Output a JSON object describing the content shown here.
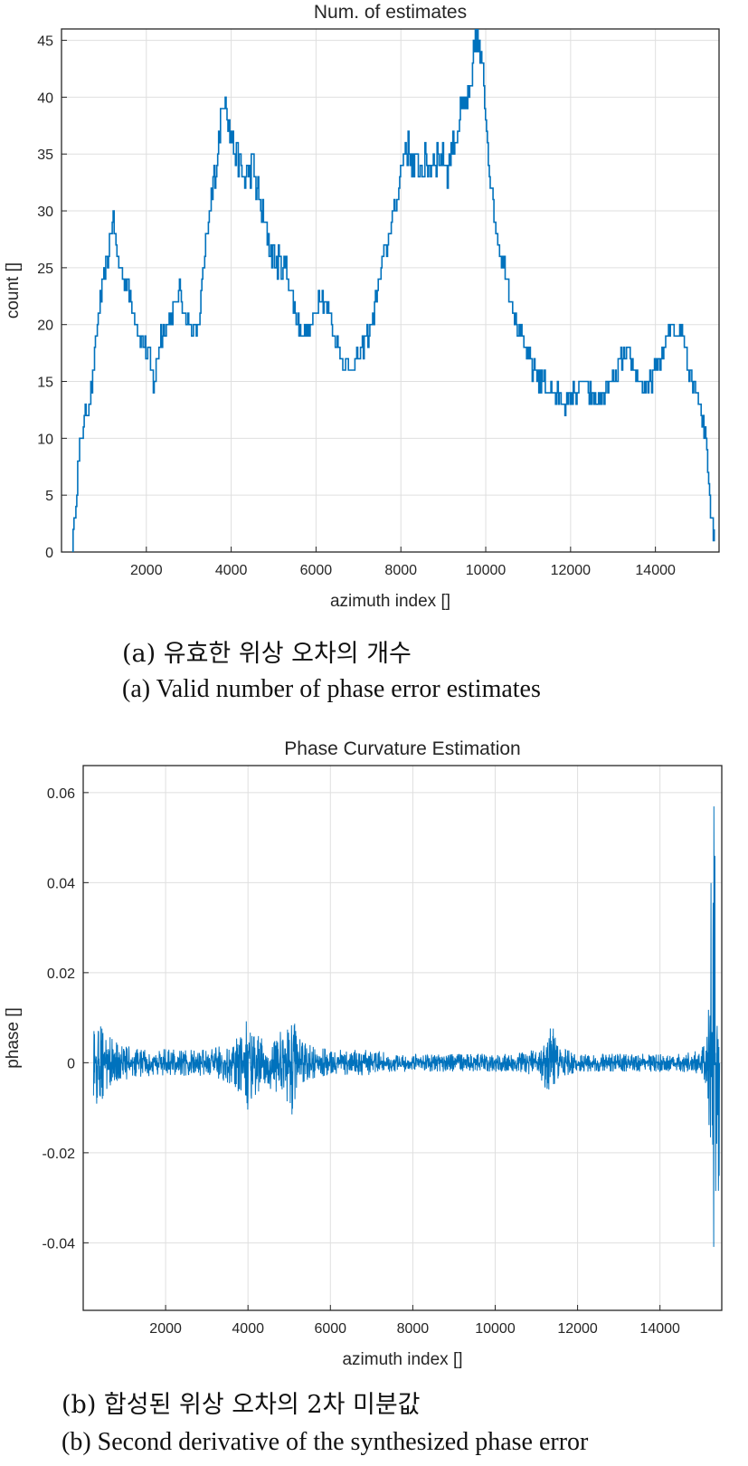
{
  "chart_data": [
    {
      "type": "line",
      "title": "Num. of estimates",
      "xlabel": "azimuth index []",
      "ylabel": "count []",
      "xlim": [
        0,
        15500
      ],
      "ylim": [
        0,
        46
      ],
      "xticks": [
        2000,
        4000,
        6000,
        8000,
        10000,
        12000,
        14000
      ],
      "yticks": [
        0,
        5,
        10,
        15,
        20,
        25,
        30,
        35,
        40,
        45
      ],
      "grid": true,
      "color": "#0072bd",
      "series": [
        {
          "x": [
            250,
            300,
            400,
            500,
            700,
            900,
            1100,
            1200,
            1300,
            1500,
            1700,
            1850,
            2000,
            2100,
            2200,
            2300,
            2500,
            2700,
            2800,
            2900,
            3000,
            3200,
            3400,
            3600,
            3750,
            3850,
            3950,
            4100,
            4300,
            4500,
            4700,
            4900,
            5100,
            5300,
            5500,
            5700,
            5900,
            6100,
            6300,
            6500,
            6800,
            7000,
            7300,
            7600,
            7900,
            8100,
            8300,
            8600,
            8900,
            9100,
            9300,
            9500,
            9650,
            9750,
            9850,
            9950,
            10100,
            10300,
            10500,
            10700,
            10900,
            11100,
            11300,
            11600,
            11900,
            12100,
            12300,
            12600,
            12800,
            13000,
            13200,
            13400,
            13600,
            13800,
            14000,
            14200,
            14400,
            14500,
            14600,
            14800,
            15000,
            15200,
            15300,
            15400
          ],
          "y": [
            0,
            3,
            8,
            11,
            14,
            22,
            26,
            30,
            26,
            24,
            21,
            19,
            18,
            16,
            15,
            19,
            20,
            22,
            23,
            21,
            20,
            19,
            27,
            33,
            38,
            41,
            37,
            35,
            33,
            34,
            30,
            27,
            25,
            25,
            21,
            19,
            20,
            23,
            21,
            18,
            16,
            17,
            20,
            26,
            31,
            36,
            34,
            34,
            35,
            34,
            37,
            39,
            40,
            46,
            44,
            41,
            33,
            27,
            24,
            20,
            18,
            16,
            15,
            14,
            13,
            14,
            15,
            13,
            14,
            15,
            17,
            17,
            15,
            14,
            16,
            18,
            20,
            19,
            20,
            16,
            14,
            10,
            3,
            1
          ]
        }
      ]
    },
    {
      "type": "line",
      "title": "Phase Curvature Estimation",
      "xlabel": "azimuth index []",
      "ylabel": "phase []",
      "xlim": [
        0,
        15500
      ],
      "ylim": [
        -0.055,
        0.066
      ],
      "xticks": [
        2000,
        4000,
        6000,
        8000,
        10000,
        12000,
        14000
      ],
      "yticks": [
        -0.04,
        -0.02,
        0,
        0.02,
        0.04,
        0.06
      ],
      "ytick_labels": [
        "-0.04",
        "-0.02",
        "0",
        "0.02",
        "0.04",
        "0.06"
      ],
      "grid": true,
      "color": "#0072bd",
      "series": [
        {
          "envelope_x": [
            250,
            300,
            600,
            1000,
            1500,
            2000,
            2500,
            3000,
            3400,
            3700,
            3900,
            4000,
            4100,
            4400,
            4700,
            5000,
            5100,
            5200,
            5500,
            6000,
            6500,
            7000,
            7500,
            8000,
            8500,
            9000,
            9500,
            10000,
            10500,
            11000,
            11200,
            11350,
            11500,
            12000,
            12500,
            13000,
            13500,
            14000,
            14500,
            15000,
            15150,
            15250,
            15300,
            15350,
            15400,
            15450
          ],
          "envelope_max": [
            0.011,
            0.011,
            0.006,
            0.004,
            0.003,
            0.003,
            0.003,
            0.003,
            0.004,
            0.006,
            0.008,
            0.011,
            0.007,
            0.005,
            0.006,
            0.009,
            0.011,
            0.006,
            0.004,
            0.003,
            0.003,
            0.003,
            0.002,
            0.002,
            0.002,
            0.002,
            0.002,
            0.002,
            0.002,
            0.003,
            0.006,
            0.01,
            0.004,
            0.002,
            0.002,
            0.002,
            0.002,
            0.002,
            0.002,
            0.003,
            0.006,
            0.045,
            0.066,
            0.046,
            0.04,
            0.04
          ],
          "envelope_min": [
            -0.011,
            -0.011,
            -0.006,
            -0.004,
            -0.003,
            -0.003,
            -0.003,
            -0.003,
            -0.004,
            -0.006,
            -0.009,
            -0.013,
            -0.008,
            -0.005,
            -0.007,
            -0.009,
            -0.013,
            -0.006,
            -0.004,
            -0.003,
            -0.003,
            -0.003,
            -0.002,
            -0.002,
            -0.002,
            -0.002,
            -0.002,
            -0.002,
            -0.002,
            -0.003,
            -0.006,
            -0.01,
            -0.004,
            -0.002,
            -0.002,
            -0.002,
            -0.002,
            -0.002,
            -0.002,
            -0.003,
            -0.006,
            -0.036,
            -0.055,
            -0.043,
            -0.04,
            -0.025
          ]
        }
      ]
    }
  ],
  "captions": {
    "a_ko": "(a) 유효한 위상 오차의 개수",
    "a_en": "(a) Valid number of phase error estimates",
    "b_ko": "(b) 합성된 위상 오차의 2차 미분값",
    "b_en": "(b) Second derivative of the synthesized phase error"
  }
}
